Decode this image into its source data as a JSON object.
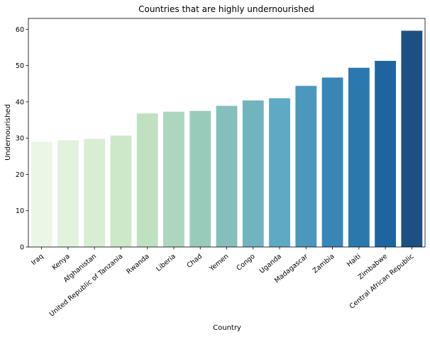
{
  "chart_data": {
    "type": "bar",
    "title": "Countries that are highly undernourished",
    "xlabel": "Country",
    "ylabel": "Undernourished",
    "ylim": [
      0,
      63
    ],
    "yticks": [
      0,
      10,
      20,
      30,
      40,
      50,
      60
    ],
    "grid": false,
    "categories": [
      "Iraq",
      "Kenya",
      "Afghanistan",
      "United Republic of Tanzania",
      "Rwanda",
      "Liberia",
      "Chad",
      "Yemen",
      "Congo",
      "Uganda",
      "Madagascar",
      "Zambia",
      "Haiti",
      "Zimbabwe",
      "Central African Republic"
    ],
    "values": [
      29.0,
      29.4,
      29.8,
      30.7,
      36.8,
      37.3,
      37.5,
      38.9,
      40.4,
      41.0,
      44.4,
      46.7,
      49.4,
      51.3,
      59.6
    ],
    "colors": [
      "#ebf6e7",
      "#e1f2dd",
      "#d7eed2",
      "#cde8c9",
      "#bfe1c2",
      "#acd7be",
      "#99cbbb",
      "#85bfbb",
      "#71b4c0",
      "#5ea9c3",
      "#4b97be",
      "#3886b6",
      "#2b78ae",
      "#1e65a0",
      "#1c4f82"
    ]
  }
}
